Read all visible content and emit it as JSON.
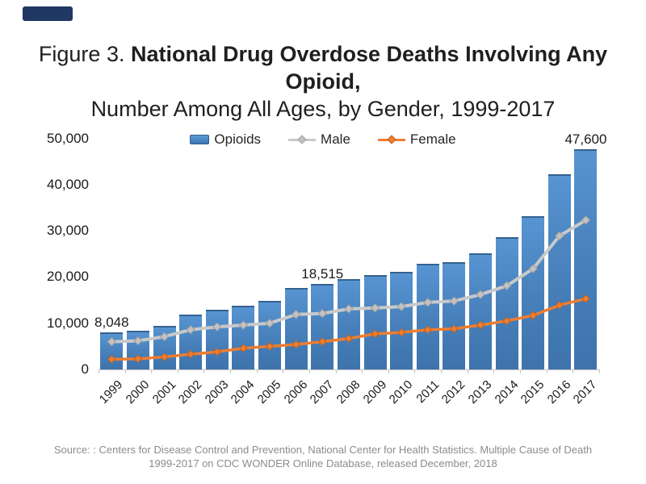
{
  "slide": {
    "corner_tag_color": "#1F3864",
    "title_prefix": "Figure 3. ",
    "title_bold": "National Drug Overdose Deaths Involving Any Opioid,",
    "title_line2": "Number Among All Ages, by Gender, 1999-2017",
    "source_line1": "Source: : Centers for Disease Control and Prevention, National Center for Health Statistics. Multiple Cause of Death",
    "source_line2": "1999-2017 on CDC WONDER Online Database, released December, 2018"
  },
  "chart_data": {
    "type": "bar",
    "subtype": "bars-with-overlaid-lines",
    "title": "Figure 3. National Drug Overdose Deaths Involving Any Opioid, Number Among All Ages, by Gender, 1999-2017",
    "categories": [
      1999,
      2000,
      2001,
      2002,
      2003,
      2004,
      2005,
      2006,
      2007,
      2008,
      2009,
      2010,
      2011,
      2012,
      2013,
      2014,
      2015,
      2016,
      2017
    ],
    "series": [
      {
        "name": "Opioids",
        "type": "bar",
        "color": "#477FB9",
        "values": [
          8048,
          8407,
          9496,
          11920,
          12940,
          13756,
          14918,
          17545,
          18515,
          19582,
          20422,
          21089,
          22784,
          23166,
          25052,
          28647,
          33091,
          42249,
          47600
        ]
      },
      {
        "name": "Male",
        "type": "line",
        "color": "#C9C9C9",
        "marker": "diamond",
        "values": [
          6000,
          6200,
          7100,
          8600,
          9200,
          9600,
          10000,
          11900,
          12100,
          13100,
          13300,
          13600,
          14500,
          14800,
          16200,
          18100,
          21800,
          28900,
          32300
        ]
      },
      {
        "name": "Female",
        "type": "line",
        "color": "#ED7D31",
        "marker": "diamond",
        "values": [
          2200,
          2300,
          2700,
          3300,
          3800,
          4600,
          5000,
          5400,
          6000,
          6700,
          7700,
          8000,
          8600,
          8800,
          9600,
          10500,
          11700,
          13900,
          15300
        ]
      }
    ],
    "point_labels": [
      {
        "series": "Opioids",
        "category": 1999,
        "text": "8,048"
      },
      {
        "series": "Opioids",
        "category": 2007,
        "text": "18,515"
      },
      {
        "series": "Opioids",
        "category": 2017,
        "text": "47,600"
      }
    ],
    "xlabel": "",
    "ylabel": "",
    "ylim": [
      0,
      50000
    ],
    "yticks": [
      "0",
      "10,000",
      "20,000",
      "30,000",
      "40,000",
      "50,000"
    ],
    "grid": false,
    "legend_position": "top-center"
  }
}
